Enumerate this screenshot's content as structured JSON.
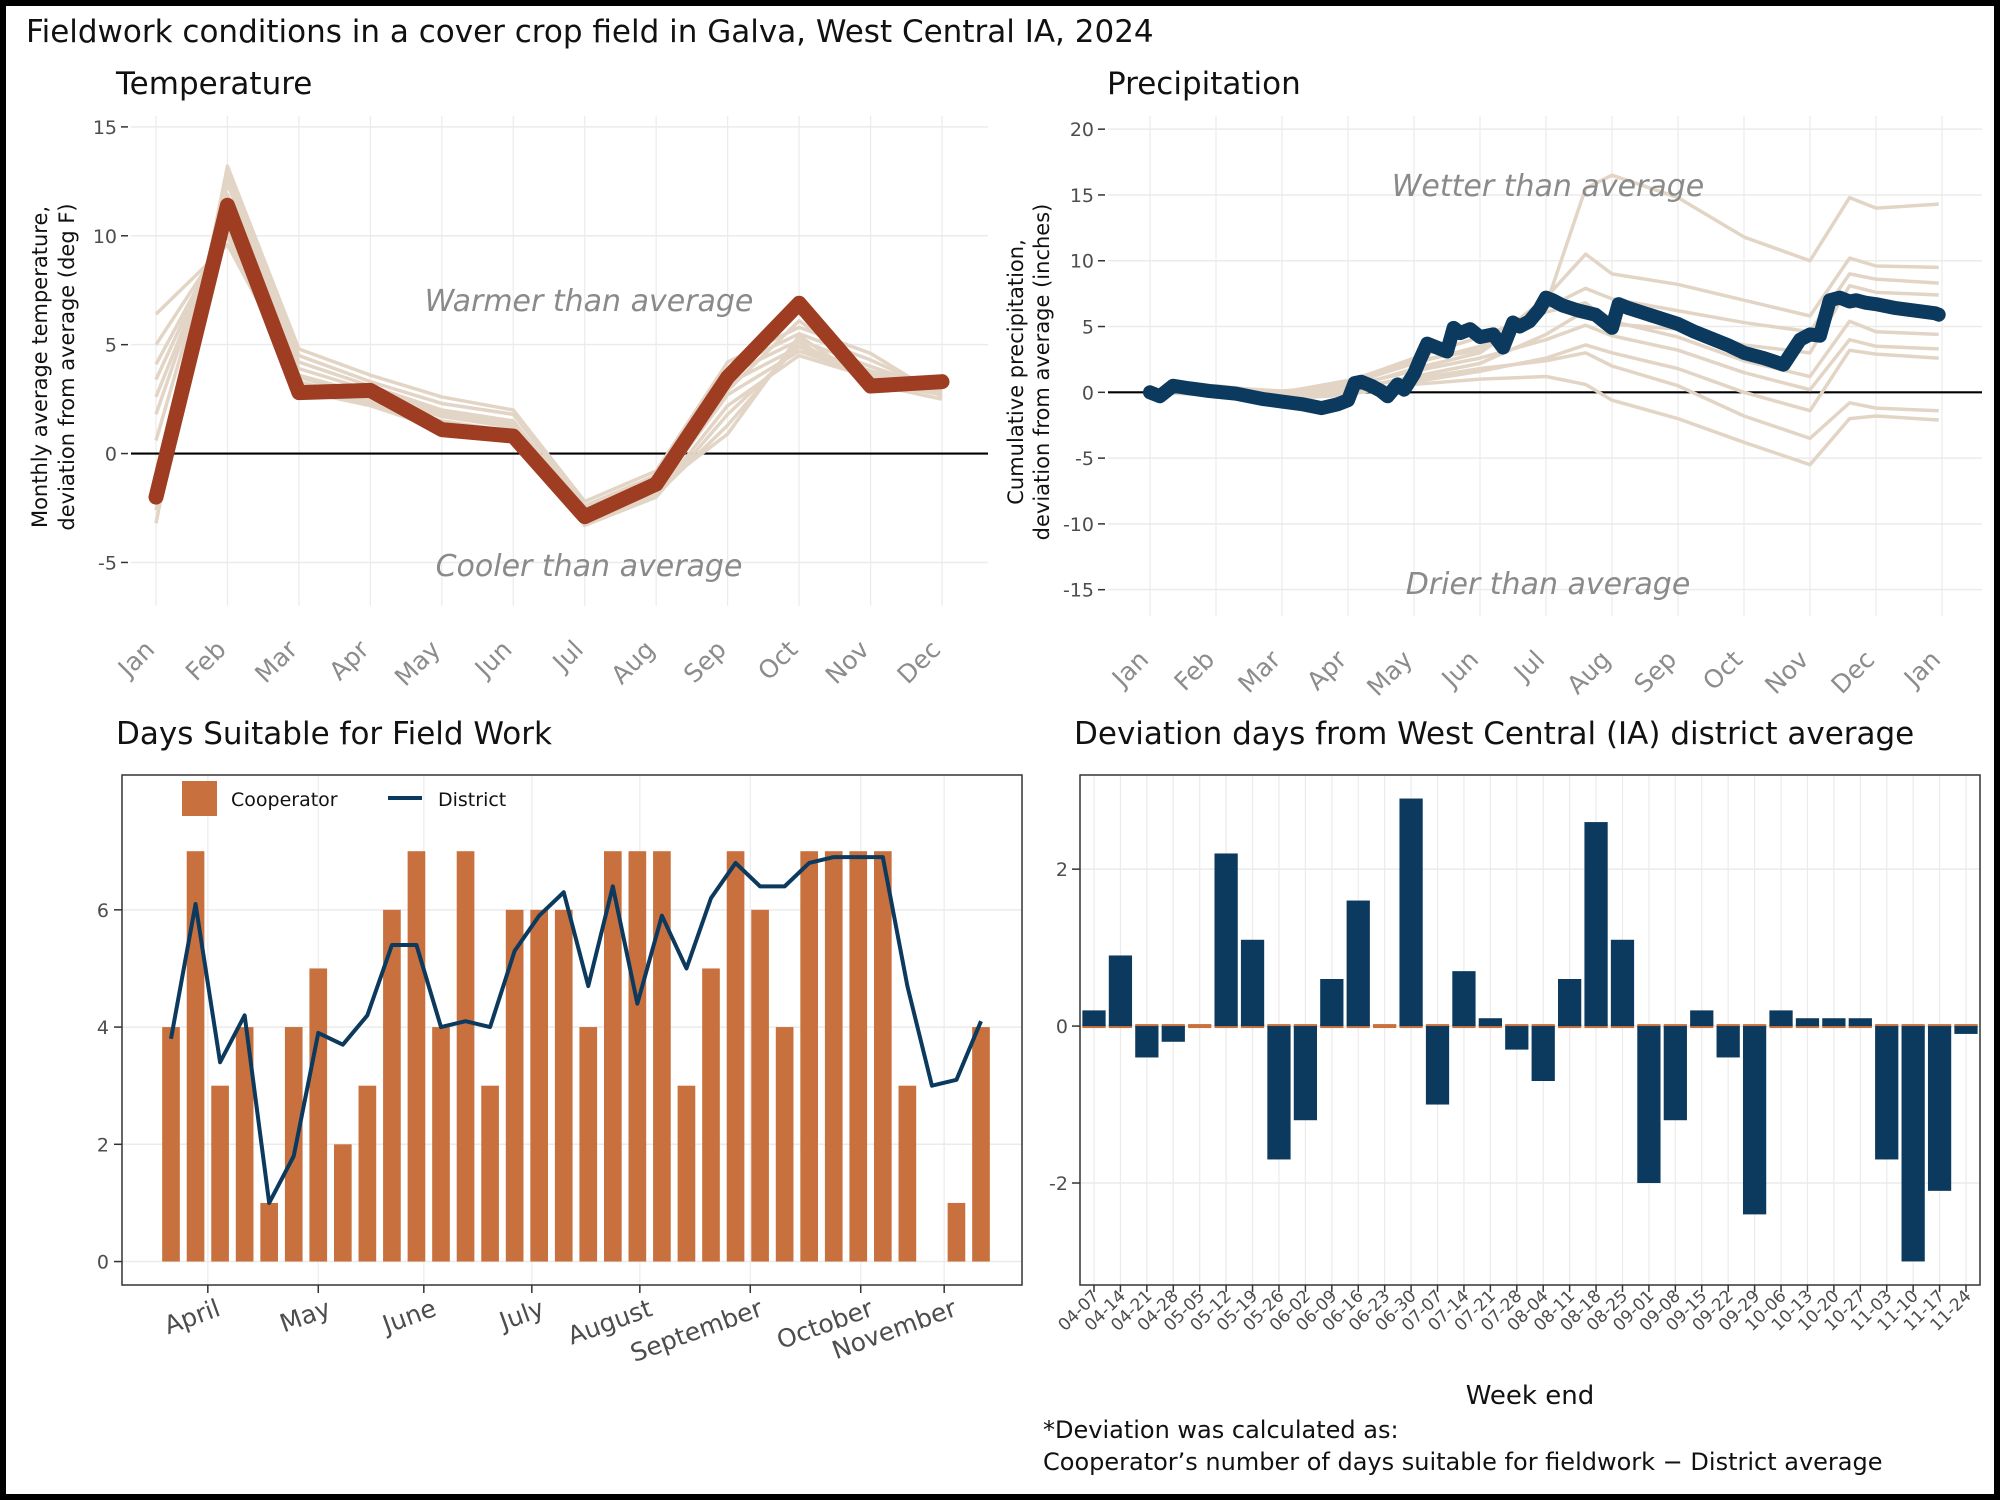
{
  "title": "Fieldwork conditions in a cover crop field in Galva, West Central IA, 2024",
  "colors": {
    "rust": "#9e3d22",
    "navy": "#0b3a5e",
    "orange": "#c8713e",
    "beige": "#e3d5c6",
    "annotation_grey": "#8a8a8a",
    "grid": "#ebebeb"
  },
  "footnote": {
    "line1": "*Deviation was calculated as:",
    "line2": "Cooperator’s number of days suitable for fieldwork − District average"
  },
  "chart_data": [
    {
      "type": "line",
      "title": "Temperature",
      "ylabel": [
        "Monthly average temperature,",
        "deviation from average (deg F)"
      ],
      "xlabel": "",
      "x": [
        "Jan",
        "Feb",
        "Mar",
        "Apr",
        "May",
        "Jun",
        "Jul",
        "Aug",
        "Sep",
        "Oct",
        "Nov",
        "Dec"
      ],
      "ylim": [
        -7,
        15.5
      ],
      "yticks": [
        -5,
        0,
        5,
        10,
        15
      ],
      "grid": true,
      "annotations": [
        "Warmer than average",
        "Cooler than average"
      ],
      "series": [
        {
          "role": "highlight",
          "color": "#9e3d22",
          "values": [
            -2.0,
            11.4,
            2.8,
            2.9,
            1.1,
            0.8,
            -2.9,
            -1.4,
            3.5,
            6.9,
            3.1,
            3.3
          ]
        }
      ],
      "background_series": [
        [
          -3.2,
          13.2,
          4.8,
          3.6,
          2.6,
          2.0,
          -2.2,
          -0.8,
          4.2,
          5.8,
          4.6,
          2.6
        ],
        [
          -2.6,
          12.8,
          4.5,
          3.3,
          2.3,
          1.8,
          -2.4,
          -1.0,
          3.9,
          5.5,
          4.3,
          2.8
        ],
        [
          -1.4,
          12.4,
          4.2,
          3.1,
          2.0,
          1.5,
          -2.6,
          -1.2,
          3.6,
          5.2,
          4.0,
          2.9
        ],
        [
          0.6,
          11.9,
          3.9,
          2.9,
          1.9,
          1.3,
          -2.8,
          -1.5,
          3.2,
          4.9,
          3.8,
          3.0
        ],
        [
          1.8,
          11.3,
          3.6,
          2.7,
          1.7,
          1.2,
          -3.0,
          -1.7,
          2.7,
          4.7,
          3.6,
          3.1
        ],
        [
          2.6,
          10.8,
          3.3,
          2.5,
          1.5,
          1.0,
          -3.2,
          -1.9,
          2.2,
          4.5,
          3.5,
          3.2
        ],
        [
          3.4,
          10.5,
          3.1,
          2.4,
          1.3,
          0.9,
          -3.3,
          -2.0,
          1.8,
          4.9,
          3.4,
          2.9
        ],
        [
          4.1,
          10.2,
          3.0,
          2.3,
          1.2,
          0.8,
          -3.1,
          -1.9,
          1.3,
          5.1,
          3.3,
          2.7
        ],
        [
          5.0,
          10.0,
          2.9,
          2.2,
          1.1,
          0.7,
          -2.9,
          -1.6,
          0.9,
          5.4,
          3.2,
          2.5
        ],
        [
          6.4,
          9.6,
          3.5,
          2.6,
          1.8,
          1.4,
          -2.5,
          -1.3,
          2.9,
          6.1,
          3.7,
          2.8
        ]
      ]
    },
    {
      "type": "line",
      "title": "Precipitation",
      "ylabel": [
        "Cumulative precipitation,",
        "deviation from average (inches)"
      ],
      "xlabel": "",
      "x_ticks": [
        "Jan",
        "Feb",
        "Mar",
        "Apr",
        "May",
        "Jun",
        "Jul",
        "Aug",
        "Sep",
        "Oct",
        "Nov",
        "Dec",
        "Jan"
      ],
      "x_unit": "month (1 = Jan 1, 13 = next Jan 1)",
      "ylim": [
        -17,
        21
      ],
      "yticks": [
        -15,
        -10,
        -5,
        0,
        5,
        10,
        15,
        20
      ],
      "grid": true,
      "annotations": [
        "Wetter than average",
        "Drier than average"
      ],
      "series": [
        {
          "role": "highlight",
          "color": "#0b3a5e",
          "x": [
            1.0,
            1.15,
            1.35,
            1.6,
            1.9,
            2.3,
            2.7,
            3.0,
            3.3,
            3.6,
            3.85,
            4.0,
            4.1,
            4.2,
            4.35,
            4.5,
            4.6,
            4.75,
            4.85,
            5.0,
            5.1,
            5.2,
            5.35,
            5.5,
            5.6,
            5.7,
            5.85,
            6.0,
            6.2,
            6.35,
            6.5,
            6.6,
            6.75,
            6.9,
            7.0,
            7.1,
            7.25,
            7.5,
            7.75,
            8.0,
            8.1,
            8.25,
            8.5,
            8.75,
            9.0,
            9.25,
            9.5,
            9.75,
            10.0,
            10.3,
            10.6,
            10.85,
            11.0,
            11.15,
            11.3,
            11.45,
            11.6,
            11.7,
            11.85,
            12.0,
            12.3,
            12.6,
            12.9,
            12.95
          ],
          "y": [
            0.0,
            -0.3,
            0.5,
            0.3,
            0.1,
            -0.1,
            -0.5,
            -0.7,
            -0.9,
            -1.2,
            -0.9,
            -0.6,
            0.7,
            0.8,
            0.5,
            0.1,
            -0.3,
            0.6,
            0.2,
            1.4,
            2.6,
            3.7,
            3.4,
            3.1,
            4.9,
            4.5,
            4.8,
            4.2,
            4.4,
            3.4,
            5.3,
            5.0,
            5.4,
            6.3,
            7.2,
            7.0,
            6.6,
            6.2,
            5.9,
            4.9,
            6.7,
            6.4,
            6.0,
            5.6,
            5.2,
            4.6,
            4.1,
            3.6,
            3.0,
            2.6,
            2.1,
            4.0,
            4.4,
            4.3,
            7.0,
            7.2,
            6.9,
            7.0,
            6.8,
            6.7,
            6.4,
            6.2,
            6.0,
            5.9
          ]
        },
        {
          "role": "background",
          "x": [
            1.0,
            2.0,
            3.0,
            4.0,
            5.0,
            6.0,
            7.0,
            7.6,
            8.0,
            9.0,
            10.0,
            11.0,
            11.6,
            12.0,
            12.95
          ],
          "y": [
            0.0,
            0.3,
            -0.2,
            0.6,
            2.2,
            3.5,
            6.6,
            15.5,
            16.5,
            14.8,
            11.8,
            10.0,
            14.8,
            14.0,
            14.3
          ]
        },
        {
          "role": "background",
          "x": [
            1.0,
            2.0,
            3.0,
            4.0,
            5.0,
            6.0,
            7.0,
            7.6,
            8.0,
            9.0,
            10.0,
            11.0,
            11.6,
            12.0,
            12.95
          ],
          "y": [
            0.0,
            0.5,
            0.0,
            0.9,
            2.4,
            3.2,
            7.2,
            10.5,
            9.0,
            8.2,
            7.0,
            5.8,
            10.2,
            9.6,
            9.5
          ]
        },
        {
          "role": "background",
          "x": [
            1.0,
            2.0,
            3.0,
            4.0,
            5.0,
            6.0,
            7.0,
            7.6,
            8.0,
            9.0,
            10.0,
            11.0,
            11.6,
            12.0,
            12.95
          ],
          "y": [
            0.0,
            -0.2,
            -0.4,
            0.3,
            1.8,
            3.0,
            6.4,
            7.9,
            7.1,
            6.2,
            5.3,
            4.6,
            9.0,
            8.6,
            8.3
          ]
        },
        {
          "role": "background",
          "x": [
            1.0,
            2.0,
            3.0,
            4.0,
            5.0,
            6.0,
            7.0,
            7.6,
            8.0,
            9.0,
            10.0,
            11.0,
            11.6,
            12.0,
            12.95
          ],
          "y": [
            0.0,
            0.2,
            -0.3,
            0.8,
            2.6,
            4.2,
            6.1,
            6.8,
            5.2,
            4.8,
            3.6,
            3.0,
            8.1,
            7.6,
            7.4
          ]
        },
        {
          "role": "background",
          "x": [
            1.0,
            2.0,
            3.0,
            4.0,
            5.0,
            6.0,
            7.0,
            7.6,
            8.0,
            9.0,
            10.0,
            11.0,
            11.6,
            12.0,
            12.95
          ],
          "y": [
            0.0,
            0.0,
            -0.6,
            0.2,
            1.2,
            2.2,
            4.4,
            6.2,
            5.4,
            4.2,
            2.4,
            1.2,
            5.4,
            4.6,
            4.4
          ]
        },
        {
          "role": "background",
          "x": [
            1.0,
            2.0,
            3.0,
            4.0,
            5.0,
            6.0,
            7.0,
            7.6,
            8.0,
            9.0,
            10.0,
            11.0,
            11.6,
            12.0,
            12.95
          ],
          "y": [
            0.0,
            0.4,
            0.1,
            0.5,
            1.6,
            2.6,
            4.0,
            5.1,
            4.3,
            3.2,
            1.5,
            0.2,
            4.0,
            3.5,
            3.3
          ]
        },
        {
          "role": "background",
          "x": [
            1.0,
            2.0,
            3.0,
            4.0,
            5.0,
            6.0,
            7.0,
            7.6,
            8.0,
            9.0,
            10.0,
            11.0,
            11.6,
            12.0,
            12.95
          ],
          "y": [
            0.0,
            -0.1,
            -0.5,
            -0.2,
            0.8,
            1.6,
            2.6,
            3.6,
            3.0,
            1.8,
            0.0,
            -1.4,
            3.2,
            2.9,
            2.6
          ]
        },
        {
          "role": "background",
          "x": [
            1.0,
            2.0,
            3.0,
            4.0,
            5.0,
            6.0,
            7.0,
            7.6,
            8.0,
            9.0,
            10.0,
            11.0,
            11.6,
            12.0,
            12.95
          ],
          "y": [
            0.0,
            0.2,
            -0.3,
            0.4,
            1.0,
            1.8,
            2.4,
            3.0,
            2.0,
            0.5,
            -1.8,
            -3.5,
            -0.8,
            -1.2,
            -1.4
          ]
        },
        {
          "role": "background",
          "x": [
            1.0,
            2.0,
            3.0,
            4.0,
            5.0,
            6.0,
            7.0,
            7.6,
            8.0,
            9.0,
            10.0,
            11.0,
            11.6,
            12.0,
            12.95
          ],
          "y": [
            0.0,
            0.1,
            -0.4,
            0.0,
            0.6,
            1.0,
            1.2,
            0.6,
            -0.6,
            -2.0,
            -3.8,
            -5.5,
            -2.0,
            -1.8,
            -2.1
          ]
        }
      ]
    },
    {
      "type": "bar",
      "title": "Days Suitable for Field Work",
      "xlabel": "",
      "ylabel": "",
      "x_ticks": [
        "April",
        "May",
        "June",
        "July",
        "August",
        "September",
        "October",
        "November"
      ],
      "x_unit": "week number (week 1 = week ending 04-07)",
      "ylim": [
        -0.4,
        8.3
      ],
      "yticks": [
        0,
        2,
        4,
        6
      ],
      "grid": true,
      "legend": {
        "position": "top-left",
        "entries": [
          "Cooperator",
          "District"
        ]
      },
      "weeks": [
        1,
        2,
        3,
        4,
        5,
        6,
        7,
        8,
        9,
        10,
        11,
        12,
        13,
        14,
        15,
        16,
        17,
        18,
        19,
        20,
        21,
        22,
        23,
        24,
        25,
        26,
        27,
        28,
        29,
        30,
        31,
        32,
        33,
        34
      ],
      "series": [
        {
          "name": "Cooperator",
          "type": "bar",
          "color": "#c8713e",
          "values": [
            4,
            7,
            3,
            4,
            1,
            4,
            5,
            2,
            3,
            6,
            7,
            4,
            7,
            3,
            6,
            6,
            6,
            4,
            7,
            7,
            7,
            3,
            5,
            7,
            6,
            4,
            7,
            7,
            7,
            7,
            3,
            0,
            1,
            4
          ]
        },
        {
          "name": "District",
          "type": "line",
          "color": "#0b3a5e",
          "values": [
            3.8,
            6.1,
            3.4,
            4.2,
            1.0,
            1.8,
            3.9,
            3.7,
            4.2,
            5.4,
            5.4,
            4.0,
            4.1,
            4.0,
            5.3,
            5.9,
            6.3,
            4.7,
            6.4,
            4.4,
            5.9,
            5.0,
            6.2,
            6.8,
            6.4,
            6.4,
            6.8,
            6.9,
            6.9,
            6.9,
            4.7,
            3.0,
            3.1,
            4.1
          ]
        }
      ]
    },
    {
      "type": "bar",
      "title": "Deviation days from West Central (IA) district average",
      "xlabel": "Week end",
      "ylabel": "",
      "ylim": [
        -3.3,
        3.2
      ],
      "yticks": [
        -2,
        0,
        2
      ],
      "grid": true,
      "categories": [
        "04-07",
        "04-14",
        "04-21",
        "04-28",
        "05-05",
        "05-12",
        "05-19",
        "05-26",
        "06-02",
        "06-09",
        "06-16",
        "06-23",
        "06-30",
        "07-07",
        "07-14",
        "07-21",
        "07-28",
        "08-04",
        "08-11",
        "08-18",
        "08-25",
        "09-01",
        "09-08",
        "09-15",
        "09-22",
        "09-29",
        "10-06",
        "10-13",
        "10-20",
        "10-27",
        "11-03",
        "11-10",
        "11-17",
        "11-24"
      ],
      "values": [
        0.2,
        0.9,
        -0.4,
        -0.2,
        0.0,
        2.2,
        1.1,
        -1.7,
        -1.2,
        0.6,
        1.6,
        0.0,
        2.9,
        -1.0,
        0.7,
        0.1,
        -0.3,
        -0.7,
        0.6,
        2.6,
        1.1,
        -2.0,
        -1.2,
        0.2,
        -0.4,
        -2.4,
        0.2,
        0.1,
        0.1,
        0.1,
        -1.7,
        -3.0,
        -2.1,
        -0.1
      ],
      "zero_markers_color": "#c8713e"
    }
  ]
}
